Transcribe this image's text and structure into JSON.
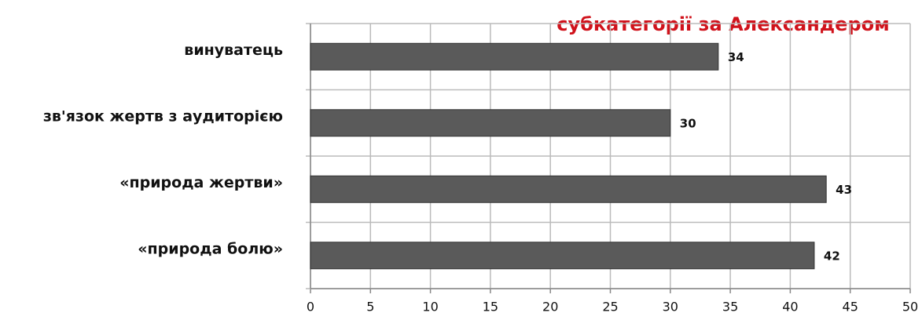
{
  "chart_data": {
    "type": "bar",
    "orientation": "horizontal",
    "title": "субкатегорії за Александером",
    "categories": [
      "винуватець",
      "зв'язок жертв з аудиторією",
      "«природа жертви»",
      "«природа болю»"
    ],
    "values": [
      34,
      30,
      43,
      42
    ],
    "color": "#5a5a5a",
    "xlim": [
      0,
      50
    ],
    "xticks": [
      0,
      5,
      10,
      15,
      20,
      25,
      30,
      35,
      40,
      45,
      50
    ],
    "grid": true
  }
}
